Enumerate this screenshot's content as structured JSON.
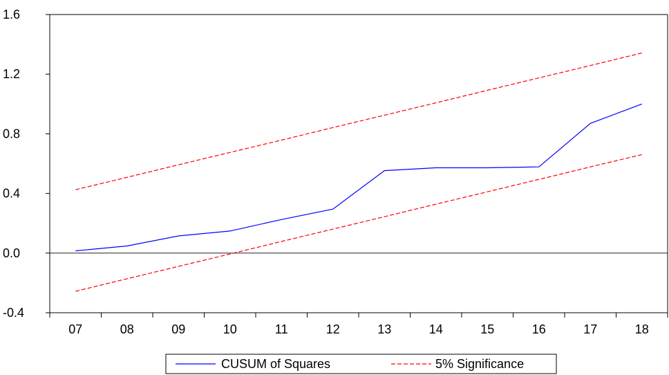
{
  "chart_data": {
    "type": "line",
    "title": "",
    "xlabel": "",
    "ylabel": "",
    "categories": [
      "07",
      "08",
      "09",
      "10",
      "11",
      "12",
      "13",
      "14",
      "15",
      "16",
      "17",
      "18"
    ],
    "ylim": [
      -0.4,
      1.6
    ],
    "yticks": [
      "1.6",
      "1.2",
      "0.8",
      "0.4",
      "0.0",
      "-0.4"
    ],
    "reference_line": 0.0,
    "grid": false,
    "legend_position": "bottom-center",
    "series": [
      {
        "name": "CUSUM of Squares",
        "color": "#0000ff",
        "style": "solid",
        "values": [
          0.015,
          0.048,
          0.115,
          0.148,
          0.225,
          0.295,
          0.553,
          0.572,
          0.572,
          0.578,
          0.87,
          1.0
        ]
      },
      {
        "name": "5% Significance",
        "color": "#ff0000",
        "style": "dashed",
        "values": [
          0.425,
          0.508,
          0.592,
          0.675,
          0.758,
          0.842,
          0.925,
          1.008,
          1.092,
          1.175,
          1.258,
          1.342
        ]
      },
      {
        "name": "",
        "color": "#ff0000",
        "style": "dashed",
        "values": [
          -0.256,
          -0.172,
          -0.089,
          -0.006,
          0.078,
          0.161,
          0.244,
          0.328,
          0.411,
          0.494,
          0.578,
          0.661
        ]
      }
    ]
  }
}
